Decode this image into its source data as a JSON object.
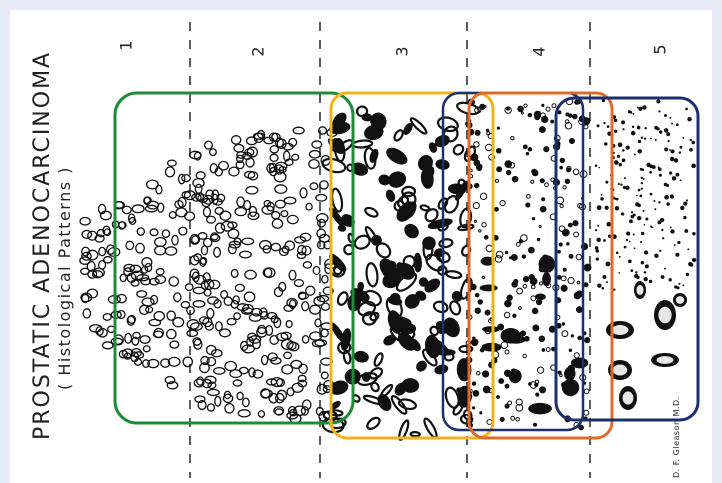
{
  "title": "PROSTATIC ADENOCARCINOMA",
  "subtitle": "( Histological Patterns )",
  "grades": [
    "1",
    "2",
    "3",
    "4",
    "5"
  ],
  "signature": "D. F. Gleason M.D.",
  "colors": {
    "background": "#e6ecf6",
    "box_grade_1_2": "#1f8a3a",
    "box_grade_3": "#f2b21c",
    "box_grade_3_4": "#1c2f6e",
    "box_grade_4": "#e06a2a",
    "box_grade_5": "#1c2f6e"
  }
}
